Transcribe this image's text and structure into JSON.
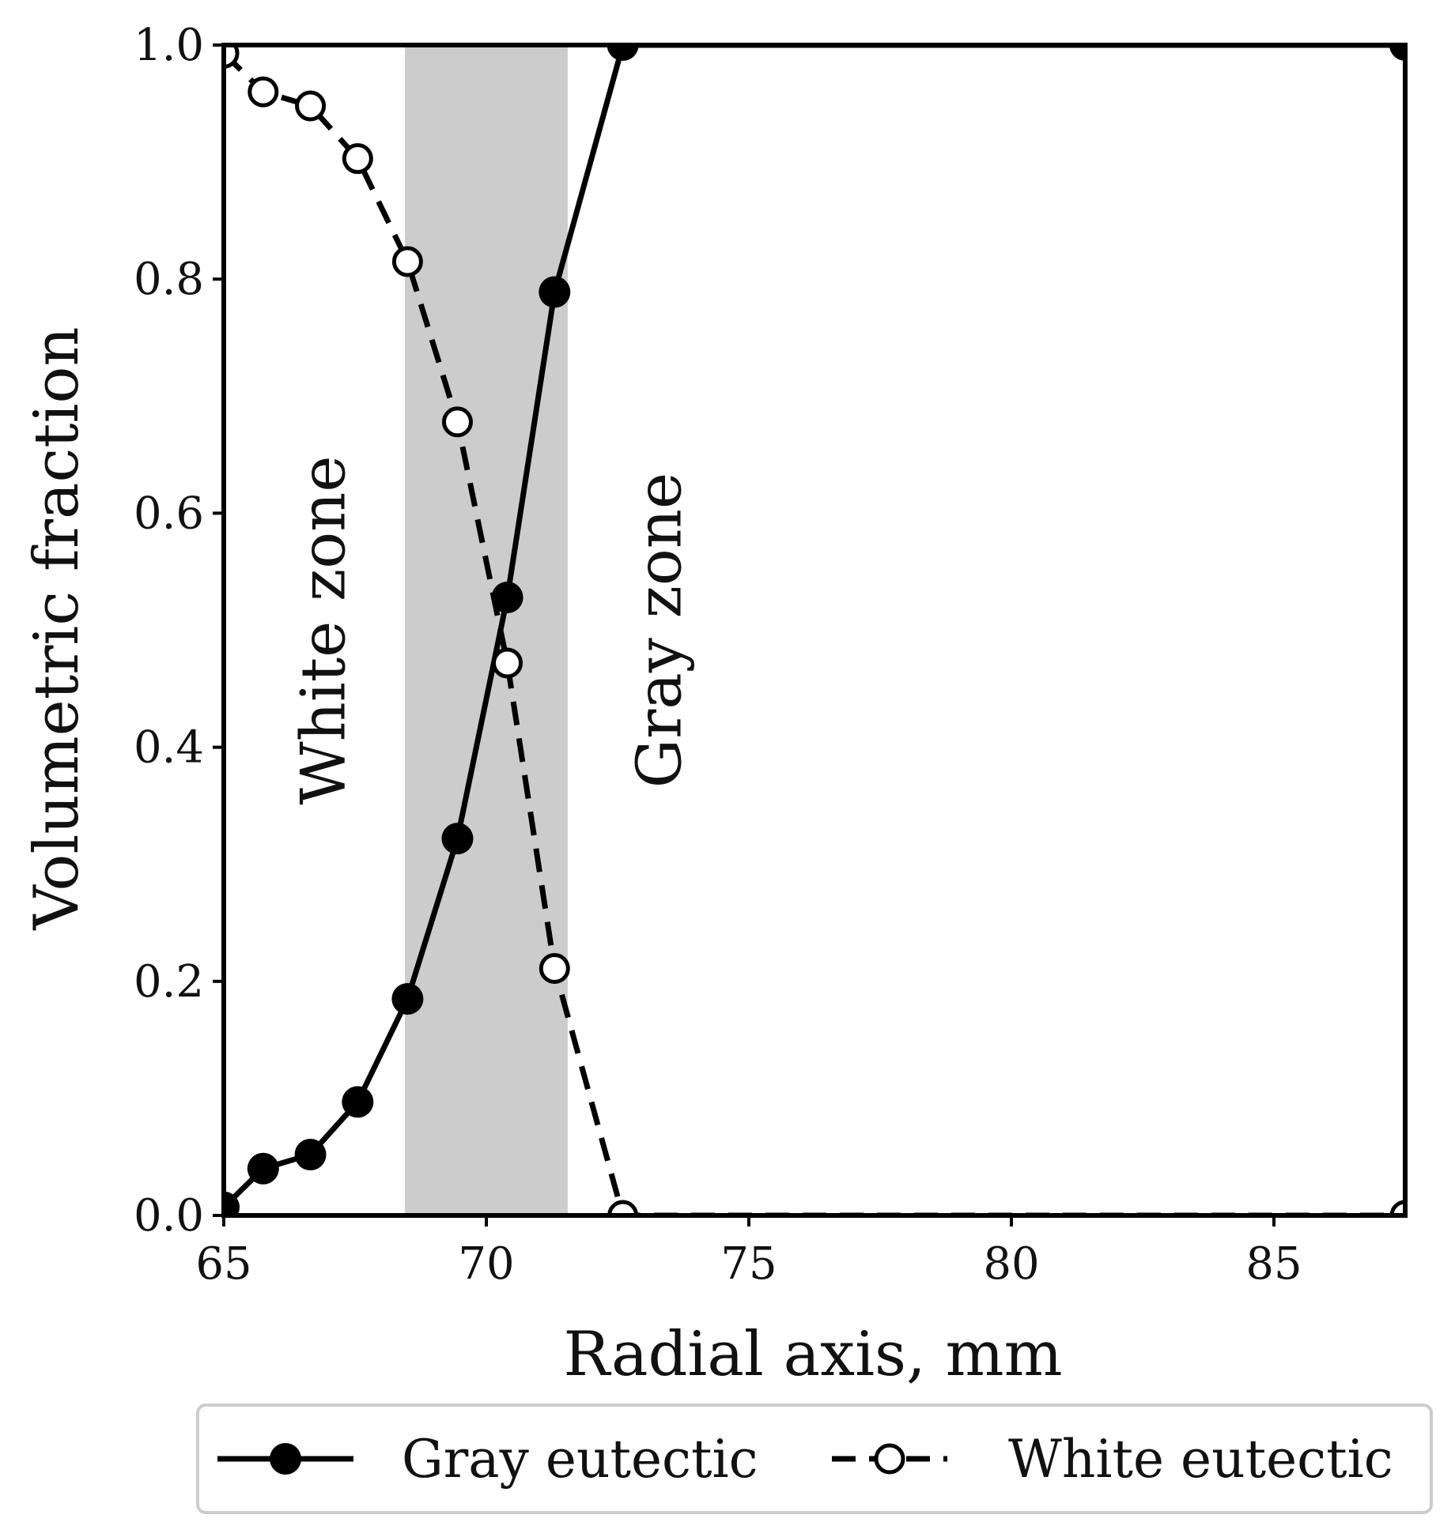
{
  "chart_data": {
    "type": "line",
    "xlabel": "Radial axis, mm",
    "ylabel": "Volumetric fraction",
    "xlim": [
      65,
      87.5
    ],
    "ylim": [
      0,
      1
    ],
    "xticks": [
      65,
      70,
      75,
      80,
      85
    ],
    "xtick_labels": [
      "65",
      "70",
      "75",
      "80",
      "85"
    ],
    "yticks": [
      0,
      0.2,
      0.4,
      0.6,
      0.8,
      1.0
    ],
    "ytick_labels": [
      "0.0",
      "0.2",
      "0.4",
      "0.6",
      "0.8",
      "1.0"
    ],
    "grid": false,
    "shaded_band": {
      "x_start": 68.45,
      "x_end": 71.55,
      "color": "#cccccc"
    },
    "annotations": [
      {
        "text": "White zone",
        "x": 67.3,
        "y": 0.5,
        "rotation": -90
      },
      {
        "text": "Gray zone",
        "x": 73.7,
        "y": 0.5,
        "rotation": -90
      }
    ],
    "legend_position": "bottom-outside",
    "series": [
      {
        "name": "Gray eutectic",
        "style": "solid",
        "marker": "filled-circle",
        "color": "#000000",
        "x": [
          65.0,
          65.75,
          66.65,
          67.55,
          68.5,
          69.45,
          70.4,
          71.3,
          72.6,
          87.5
        ],
        "y": [
          0.007,
          0.04,
          0.052,
          0.097,
          0.185,
          0.322,
          0.528,
          0.789,
          1.0,
          1.0
        ]
      },
      {
        "name": "White eutectic",
        "style": "dashed",
        "marker": "open-circle",
        "color": "#000000",
        "x": [
          65.0,
          65.75,
          66.65,
          67.55,
          68.5,
          69.45,
          70.4,
          71.3,
          72.6,
          87.5
        ],
        "y": [
          0.993,
          0.96,
          0.948,
          0.903,
          0.815,
          0.678,
          0.472,
          0.211,
          0.0,
          0.0
        ]
      }
    ]
  }
}
